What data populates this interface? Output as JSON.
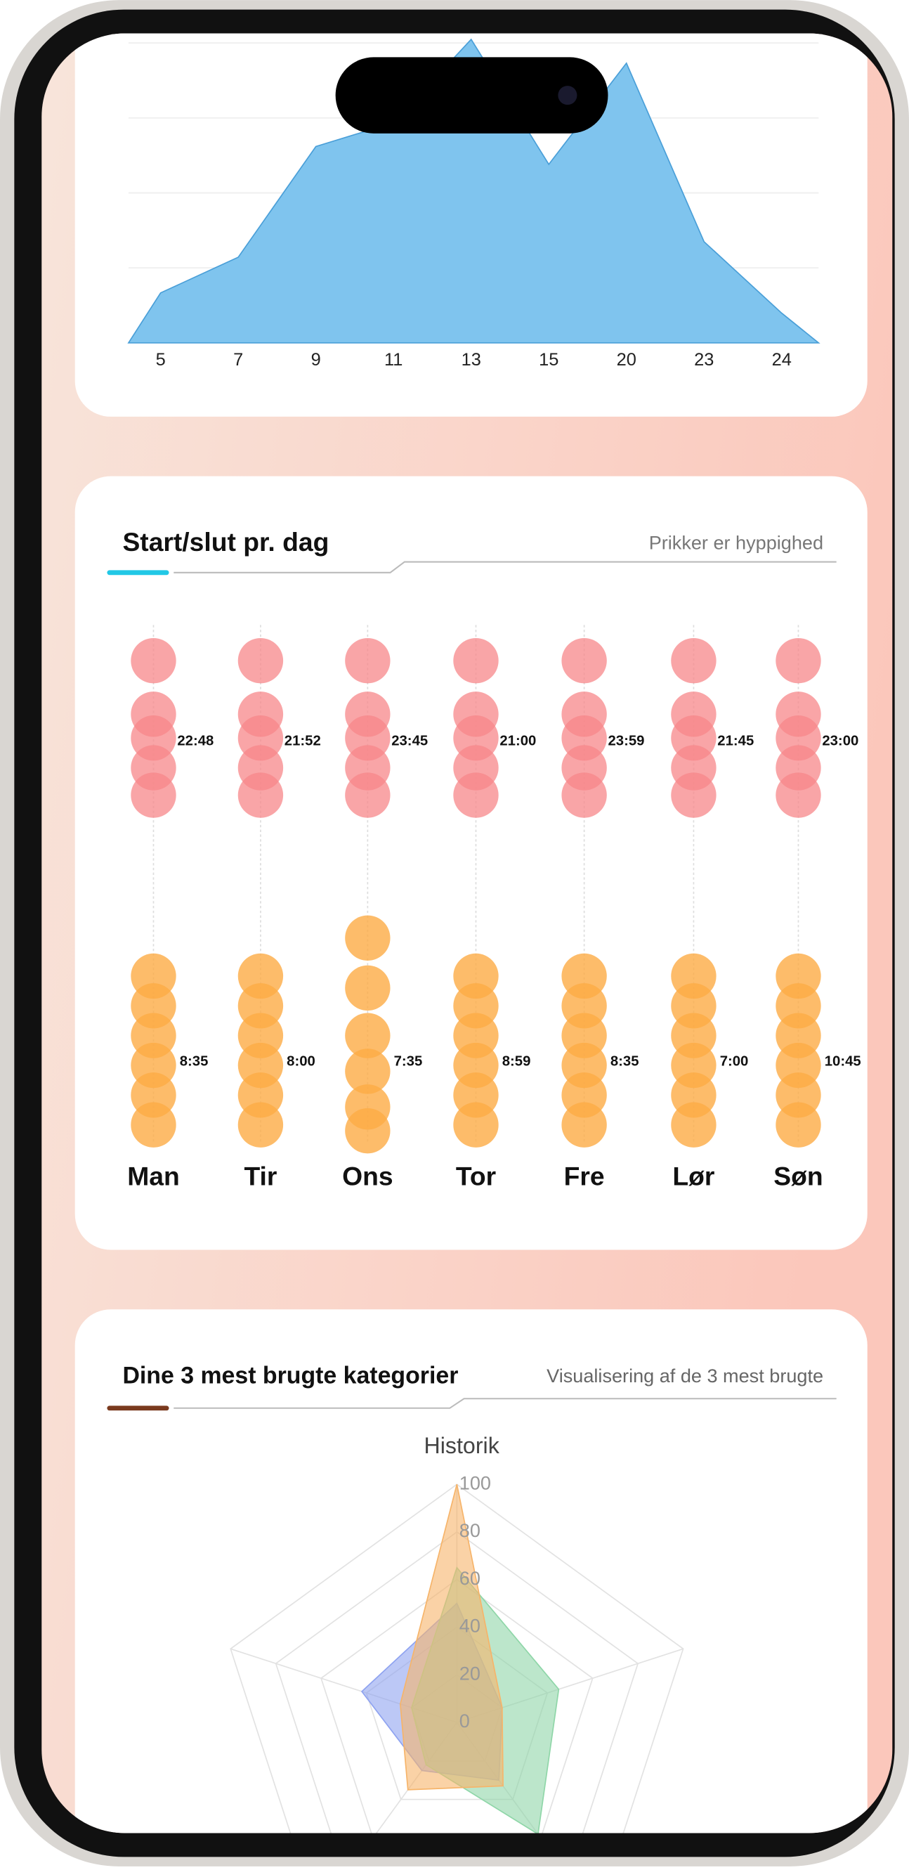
{
  "area_card": {
    "categories": [
      "5",
      "7",
      "9",
      "11",
      "13",
      "15",
      "20",
      "23",
      "24"
    ],
    "values": [
      42,
      72,
      165,
      185,
      255,
      150,
      235,
      85,
      25
    ],
    "color": "#7fc4ee"
  },
  "schedule": {
    "title": "Start/slut pr. dag",
    "subtitle": "Prikker er hyppighed",
    "days": [
      "Man",
      "Tir",
      "Ons",
      "Tor",
      "Fre",
      "Lør",
      "Søn"
    ],
    "end_times": [
      "22:48",
      "21:52",
      "23:45",
      "21:00",
      "23:59",
      "21:45",
      "23:00"
    ],
    "start_times": [
      "8:35",
      "8:00",
      "7:35",
      "8:59",
      "8:35",
      "7:00",
      "10:45"
    ],
    "end_color": "#f7878a",
    "start_color": "#fdab45"
  },
  "categories_card": {
    "title": "Dine 3 mest brugte kategorier",
    "subtitle": "Visualisering af de 3 mest brugte",
    "chart_data": {
      "type": "radar",
      "title": "Historik",
      "rlim": [
        0,
        100
      ],
      "rticks": [
        0,
        20,
        40,
        60,
        80,
        100
      ],
      "series": [
        {
          "color": "#8fa3f0",
          "values": [
            50,
            20,
            30,
            25,
            42
          ]
        },
        {
          "color": "#8fd6a8",
          "values": [
            65,
            45,
            58,
            22,
            20
          ]
        },
        {
          "color": "#f6b46a",
          "values": [
            100,
            20,
            33,
            35,
            25
          ]
        }
      ]
    }
  }
}
